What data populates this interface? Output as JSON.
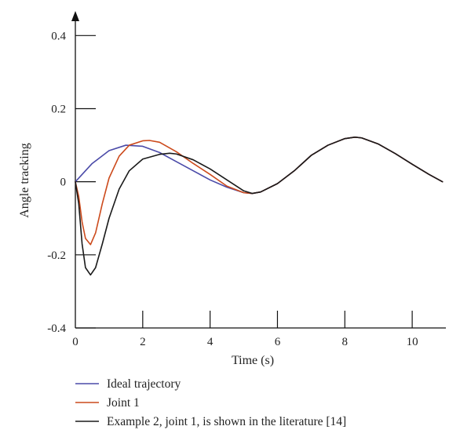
{
  "chart_data": {
    "type": "line",
    "xlabel": "Time (s)",
    "ylabel": "Angle tracking",
    "xlim": [
      0,
      11.0
    ],
    "ylim": [
      -0.4,
      0.45
    ],
    "x_ticks": [
      0,
      2,
      4,
      6,
      8,
      10
    ],
    "x_tick_labels": [
      "0",
      "2",
      "4",
      "6",
      "8",
      "10"
    ],
    "y_ticks": [
      -0.4,
      -0.2,
      0,
      0.2,
      0.4
    ],
    "y_tick_labels": [
      "-0.4",
      "-0.2",
      "0",
      "0.2",
      "0.4"
    ],
    "grid": false,
    "legend_position": "bottom",
    "series": [
      {
        "name": "Ideal trajectory",
        "color": "#4a4aa8",
        "x": [
          0,
          0.5,
          1.0,
          1.5,
          2.0,
          2.5,
          3.0,
          3.5,
          4.0,
          4.5,
          5.0,
          5.25,
          5.5,
          6.0,
          6.5,
          7.0,
          7.5,
          8.0,
          8.3,
          8.5,
          9.0,
          9.5,
          10.0,
          10.5,
          10.9
        ],
        "y": [
          0.0,
          0.05,
          0.085,
          0.1,
          0.097,
          0.08,
          0.055,
          0.03,
          0.005,
          -0.015,
          -0.03,
          -0.032,
          -0.028,
          -0.005,
          0.03,
          0.072,
          0.1,
          0.118,
          0.122,
          0.12,
          0.103,
          0.077,
          0.048,
          0.02,
          0.0
        ]
      },
      {
        "name": "Joint 1",
        "color": "#cc4a1c",
        "x": [
          0,
          0.1,
          0.2,
          0.3,
          0.45,
          0.6,
          0.8,
          1.0,
          1.3,
          1.6,
          2.0,
          2.2,
          2.5,
          3.0,
          3.5,
          4.0,
          4.5,
          5.0,
          5.25,
          5.5,
          6.0,
          6.5,
          7.0,
          7.5,
          8.0,
          8.3,
          8.5,
          9.0,
          9.5,
          10.0,
          10.5,
          10.9
        ],
        "y": [
          0.0,
          -0.04,
          -0.11,
          -0.155,
          -0.172,
          -0.14,
          -0.06,
          0.01,
          0.07,
          0.1,
          0.112,
          0.113,
          0.108,
          0.082,
          0.05,
          0.02,
          -0.012,
          -0.03,
          -0.032,
          -0.028,
          -0.005,
          0.03,
          0.072,
          0.1,
          0.118,
          0.122,
          0.12,
          0.103,
          0.077,
          0.048,
          0.02,
          0.0
        ]
      },
      {
        "name": "Example 2, joint 1, is shown in the literature [14]",
        "color": "#1a1a1a",
        "x": [
          0,
          0.1,
          0.2,
          0.3,
          0.45,
          0.6,
          0.8,
          1.0,
          1.3,
          1.6,
          2.0,
          2.5,
          2.8,
          3.0,
          3.5,
          4.0,
          4.5,
          5.0,
          5.25,
          5.5,
          6.0,
          6.5,
          7.0,
          7.5,
          8.0,
          8.3,
          8.5,
          9.0,
          9.5,
          10.0,
          10.5,
          10.9
        ],
        "y": [
          0.0,
          -0.06,
          -0.17,
          -0.235,
          -0.255,
          -0.235,
          -0.17,
          -0.1,
          -0.02,
          0.03,
          0.062,
          0.075,
          0.078,
          0.076,
          0.06,
          0.035,
          0.005,
          -0.025,
          -0.032,
          -0.028,
          -0.005,
          0.03,
          0.072,
          0.1,
          0.118,
          0.122,
          0.12,
          0.103,
          0.077,
          0.048,
          0.02,
          0.0
        ]
      }
    ]
  }
}
